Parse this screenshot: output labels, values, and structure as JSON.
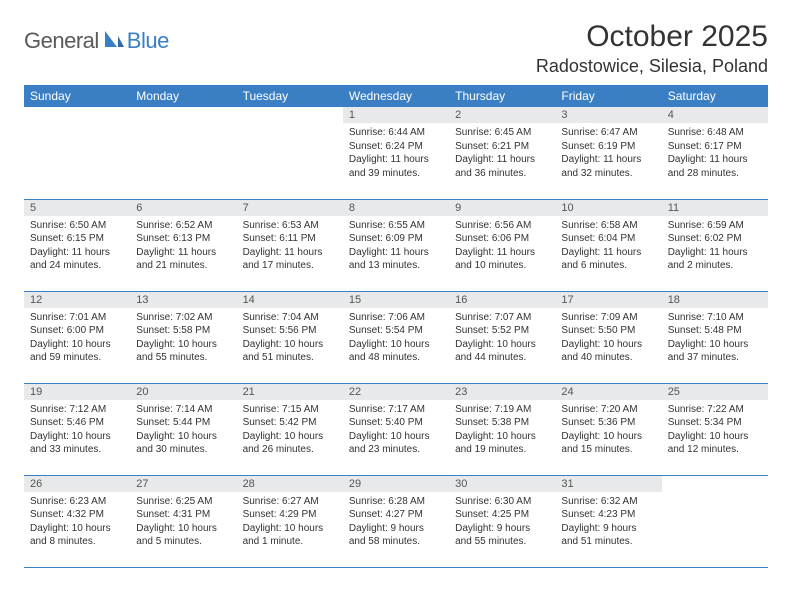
{
  "logo": {
    "general": "General",
    "blue": "Blue"
  },
  "title": "October 2025",
  "location": "Radostowice, Silesia, Poland",
  "colors": {
    "header_bg": "#3a7fc4",
    "daynum_bg": "#e8e9ea",
    "text": "#333333",
    "rule": "#3a7fc4",
    "logo_gray": "#5a5a5a",
    "logo_blue": "#3a7fc4"
  },
  "day_headers": [
    "Sunday",
    "Monday",
    "Tuesday",
    "Wednesday",
    "Thursday",
    "Friday",
    "Saturday"
  ],
  "weeks": [
    [
      null,
      null,
      null,
      {
        "n": "1",
        "sr": "Sunrise: 6:44 AM",
        "ss": "Sunset: 6:24 PM",
        "dl": "Daylight: 11 hours and 39 minutes."
      },
      {
        "n": "2",
        "sr": "Sunrise: 6:45 AM",
        "ss": "Sunset: 6:21 PM",
        "dl": "Daylight: 11 hours and 36 minutes."
      },
      {
        "n": "3",
        "sr": "Sunrise: 6:47 AM",
        "ss": "Sunset: 6:19 PM",
        "dl": "Daylight: 11 hours and 32 minutes."
      },
      {
        "n": "4",
        "sr": "Sunrise: 6:48 AM",
        "ss": "Sunset: 6:17 PM",
        "dl": "Daylight: 11 hours and 28 minutes."
      }
    ],
    [
      {
        "n": "5",
        "sr": "Sunrise: 6:50 AM",
        "ss": "Sunset: 6:15 PM",
        "dl": "Daylight: 11 hours and 24 minutes."
      },
      {
        "n": "6",
        "sr": "Sunrise: 6:52 AM",
        "ss": "Sunset: 6:13 PM",
        "dl": "Daylight: 11 hours and 21 minutes."
      },
      {
        "n": "7",
        "sr": "Sunrise: 6:53 AM",
        "ss": "Sunset: 6:11 PM",
        "dl": "Daylight: 11 hours and 17 minutes."
      },
      {
        "n": "8",
        "sr": "Sunrise: 6:55 AM",
        "ss": "Sunset: 6:09 PM",
        "dl": "Daylight: 11 hours and 13 minutes."
      },
      {
        "n": "9",
        "sr": "Sunrise: 6:56 AM",
        "ss": "Sunset: 6:06 PM",
        "dl": "Daylight: 11 hours and 10 minutes."
      },
      {
        "n": "10",
        "sr": "Sunrise: 6:58 AM",
        "ss": "Sunset: 6:04 PM",
        "dl": "Daylight: 11 hours and 6 minutes."
      },
      {
        "n": "11",
        "sr": "Sunrise: 6:59 AM",
        "ss": "Sunset: 6:02 PM",
        "dl": "Daylight: 11 hours and 2 minutes."
      }
    ],
    [
      {
        "n": "12",
        "sr": "Sunrise: 7:01 AM",
        "ss": "Sunset: 6:00 PM",
        "dl": "Daylight: 10 hours and 59 minutes."
      },
      {
        "n": "13",
        "sr": "Sunrise: 7:02 AM",
        "ss": "Sunset: 5:58 PM",
        "dl": "Daylight: 10 hours and 55 minutes."
      },
      {
        "n": "14",
        "sr": "Sunrise: 7:04 AM",
        "ss": "Sunset: 5:56 PM",
        "dl": "Daylight: 10 hours and 51 minutes."
      },
      {
        "n": "15",
        "sr": "Sunrise: 7:06 AM",
        "ss": "Sunset: 5:54 PM",
        "dl": "Daylight: 10 hours and 48 minutes."
      },
      {
        "n": "16",
        "sr": "Sunrise: 7:07 AM",
        "ss": "Sunset: 5:52 PM",
        "dl": "Daylight: 10 hours and 44 minutes."
      },
      {
        "n": "17",
        "sr": "Sunrise: 7:09 AM",
        "ss": "Sunset: 5:50 PM",
        "dl": "Daylight: 10 hours and 40 minutes."
      },
      {
        "n": "18",
        "sr": "Sunrise: 7:10 AM",
        "ss": "Sunset: 5:48 PM",
        "dl": "Daylight: 10 hours and 37 minutes."
      }
    ],
    [
      {
        "n": "19",
        "sr": "Sunrise: 7:12 AM",
        "ss": "Sunset: 5:46 PM",
        "dl": "Daylight: 10 hours and 33 minutes."
      },
      {
        "n": "20",
        "sr": "Sunrise: 7:14 AM",
        "ss": "Sunset: 5:44 PM",
        "dl": "Daylight: 10 hours and 30 minutes."
      },
      {
        "n": "21",
        "sr": "Sunrise: 7:15 AM",
        "ss": "Sunset: 5:42 PM",
        "dl": "Daylight: 10 hours and 26 minutes."
      },
      {
        "n": "22",
        "sr": "Sunrise: 7:17 AM",
        "ss": "Sunset: 5:40 PM",
        "dl": "Daylight: 10 hours and 23 minutes."
      },
      {
        "n": "23",
        "sr": "Sunrise: 7:19 AM",
        "ss": "Sunset: 5:38 PM",
        "dl": "Daylight: 10 hours and 19 minutes."
      },
      {
        "n": "24",
        "sr": "Sunrise: 7:20 AM",
        "ss": "Sunset: 5:36 PM",
        "dl": "Daylight: 10 hours and 15 minutes."
      },
      {
        "n": "25",
        "sr": "Sunrise: 7:22 AM",
        "ss": "Sunset: 5:34 PM",
        "dl": "Daylight: 10 hours and 12 minutes."
      }
    ],
    [
      {
        "n": "26",
        "sr": "Sunrise: 6:23 AM",
        "ss": "Sunset: 4:32 PM",
        "dl": "Daylight: 10 hours and 8 minutes."
      },
      {
        "n": "27",
        "sr": "Sunrise: 6:25 AM",
        "ss": "Sunset: 4:31 PM",
        "dl": "Daylight: 10 hours and 5 minutes."
      },
      {
        "n": "28",
        "sr": "Sunrise: 6:27 AM",
        "ss": "Sunset: 4:29 PM",
        "dl": "Daylight: 10 hours and 1 minute."
      },
      {
        "n": "29",
        "sr": "Sunrise: 6:28 AM",
        "ss": "Sunset: 4:27 PM",
        "dl": "Daylight: 9 hours and 58 minutes."
      },
      {
        "n": "30",
        "sr": "Sunrise: 6:30 AM",
        "ss": "Sunset: 4:25 PM",
        "dl": "Daylight: 9 hours and 55 minutes."
      },
      {
        "n": "31",
        "sr": "Sunrise: 6:32 AM",
        "ss": "Sunset: 4:23 PM",
        "dl": "Daylight: 9 hours and 51 minutes."
      },
      null
    ]
  ]
}
